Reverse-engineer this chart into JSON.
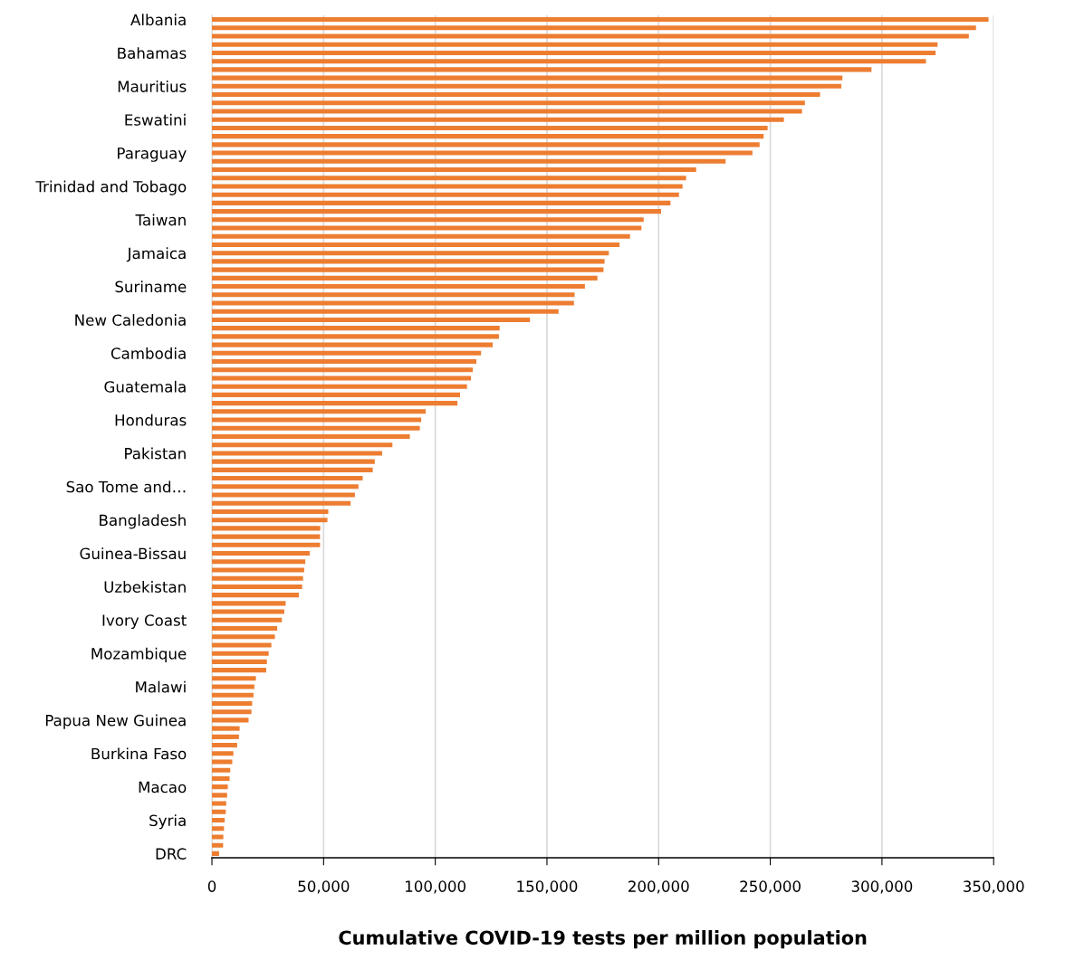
{
  "chart_data": {
    "type": "bar",
    "orientation": "horizontal",
    "xlabel": "Cumulative COVID-19 tests per million population",
    "categories": [
      "Albania",
      null,
      null,
      null,
      "Bahamas",
      null,
      null,
      null,
      "Mauritius",
      null,
      null,
      null,
      "Eswatini",
      null,
      null,
      null,
      "Paraguay",
      null,
      null,
      null,
      "Trinidad and Tobago",
      null,
      null,
      null,
      "Taiwan",
      null,
      null,
      null,
      "Jamaica",
      null,
      null,
      null,
      "Suriname",
      null,
      null,
      null,
      "New Caledonia",
      null,
      null,
      null,
      "Cambodia",
      null,
      null,
      null,
      "Guatemala",
      null,
      null,
      null,
      "Honduras",
      null,
      null,
      null,
      "Pakistan",
      null,
      null,
      null,
      "Sao Tome and…",
      null,
      null,
      null,
      "Bangladesh",
      null,
      null,
      null,
      "Guinea-Bissau",
      null,
      null,
      null,
      "Uzbekistan",
      null,
      null,
      null,
      "Ivory Coast",
      null,
      null,
      null,
      "Mozambique",
      null,
      null,
      null,
      "Malawi",
      null,
      null,
      null,
      "Papua New Guinea",
      null,
      null,
      null,
      "Burkina Faso",
      null,
      null,
      null,
      "Macao",
      null,
      null,
      null,
      "Syria",
      null,
      null,
      null,
      "DRC"
    ],
    "values": [
      347700,
      342100,
      338900,
      324900,
      324000,
      319700,
      295300,
      282300,
      281800,
      272300,
      265500,
      264200,
      256100,
      248800,
      247000,
      245200,
      242000,
      230000,
      216800,
      212300,
      210700,
      209100,
      205300,
      201100,
      193300,
      192300,
      187200,
      182500,
      177700,
      175800,
      175300,
      172600,
      167000,
      162400,
      162100,
      155200,
      142400,
      128800,
      128500,
      125700,
      120500,
      118400,
      116800,
      116000,
      114200,
      111100,
      109900,
      95700,
      93700,
      93100,
      88600,
      80800,
      76200,
      72900,
      72000,
      67500,
      65600,
      64000,
      62100,
      52100,
      51700,
      48500,
      48400,
      48400,
      43800,
      41800,
      41300,
      40800,
      40400,
      38900,
      33000,
      32400,
      31300,
      29200,
      28200,
      26600,
      25400,
      24600,
      24300,
      19700,
      19000,
      18600,
      18000,
      17700,
      16400,
      12400,
      12100,
      11300,
      9600,
      9100,
      8200,
      7900,
      7100,
      6800,
      6400,
      6200,
      5700,
      5400,
      5100,
      5000,
      3200
    ],
    "color": "#ed7d31",
    "xlim": [
      0,
      350000
    ],
    "xticks": [
      0,
      {
        "value": 50000,
        "label": "50,000"
      },
      {
        "value": 100000,
        "label": "100,000"
      },
      {
        "value": 150000,
        "label": "150,000"
      },
      {
        "value": 200000,
        "label": "200,000"
      },
      {
        "value": 250000,
        "label": "250,000"
      },
      {
        "value": 300000,
        "label": "300,000"
      },
      {
        "value": 350000,
        "label": "350,000"
      }
    ],
    "grid": "x",
    "legend": false
  }
}
